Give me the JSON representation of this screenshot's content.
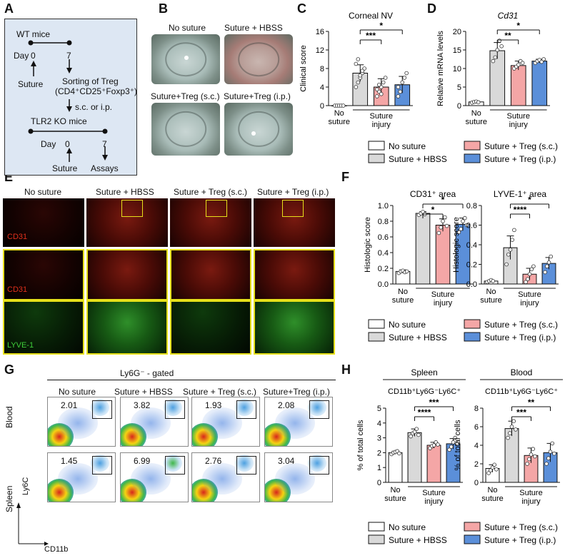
{
  "panels": {
    "A": "A",
    "B": "B",
    "C": "C",
    "D": "D",
    "E": "E",
    "F": "F",
    "G": "G",
    "H": "H"
  },
  "panelA": {
    "wt_mice": "WT mice",
    "day_label": "Day",
    "day0": "0",
    "day7": "7",
    "suture": "Suture",
    "sorting_line1": "Sorting of Treg",
    "sorting_line2": "(CD4⁺CD25⁺Foxp3⁺)",
    "route": "s.c. or i.p.",
    "tlr2": "TLR2 KO mice",
    "day_label2": "Day",
    "day0b": "0",
    "day7b": "7",
    "suture2": "Suture",
    "assays": "Assays"
  },
  "panelB": {
    "labels": [
      "No suture",
      "Suture + HBSS",
      "Suture+Treg (s.c.)",
      "Suture+Treg (i.p.)"
    ]
  },
  "panelE": {
    "columns": [
      "No suture",
      "Suture + HBSS",
      "Suture + Treg (s.c.)",
      "Suture + Treg (i.p.)"
    ],
    "row_labels": [
      "CD31",
      "CD31",
      "LYVE-1"
    ]
  },
  "panelG": {
    "header": "Ly6G⁻ - gated",
    "columns": [
      "No suture",
      "Suture + HBSS",
      "Suture + Treg (s.c.)",
      "Suture+Treg (i.p.)"
    ],
    "rows": [
      "Blood",
      "Spleen"
    ],
    "blood_values": [
      "2.01",
      "3.82",
      "1.93",
      "2.08"
    ],
    "spleen_values": [
      "1.45",
      "6.99",
      "2.76",
      "3.04"
    ],
    "yaxis": "Ly6C",
    "xaxis": "CD11b"
  },
  "legend": {
    "no_suture": "No suture",
    "hbss": "Suture + HBSS",
    "treg_sc": "Suture + Treg (s.c.)",
    "treg_ip": "Suture + Treg (i.p.)"
  },
  "group_labels": {
    "no1": "No",
    "no2": "suture",
    "inj1": "Suture",
    "inj2": "injury"
  },
  "colors": {
    "no": "#ffffff",
    "hbss": "#d9d9d9",
    "sc": "#f4a6a6",
    "ip": "#5b8fd9"
  },
  "chart_data": [
    {
      "id": "C",
      "type": "bar",
      "title": "Corneal NV",
      "title_italic": false,
      "ylabel": "Clinical score",
      "ylim": [
        0,
        16
      ],
      "yticks": [
        "0",
        "4",
        "8",
        "12",
        "16"
      ],
      "categories": [
        "No suture",
        "Suture + HBSS",
        "Suture + Treg (s.c.)",
        "Suture + Treg (i.p.)"
      ],
      "values": [
        0,
        7,
        4,
        4.5
      ],
      "errors": [
        0,
        1.8,
        1.8,
        1.8
      ],
      "points": [
        [
          0,
          0,
          0,
          0,
          0
        ],
        [
          4,
          5,
          6,
          7,
          8,
          9,
          10,
          6.5,
          7.5
        ],
        [
          2,
          3,
          4,
          5,
          6,
          3.5,
          4.5,
          2.5
        ],
        [
          2,
          3,
          5,
          6,
          7,
          4,
          3
        ]
      ],
      "sig": [
        {
          "label": "***",
          "from": 1,
          "to": 2
        },
        {
          "label": "*",
          "from": 1,
          "to": 3
        }
      ]
    },
    {
      "id": "D",
      "type": "bar",
      "title": "Cd31",
      "title_italic": true,
      "ylabel": "Relative mRNA levels",
      "ylim": [
        0,
        20
      ],
      "yticks": [
        "0",
        "5",
        "10",
        "15",
        "20"
      ],
      "categories": [
        "No suture",
        "Suture + HBSS",
        "Suture + Treg (s.c.)",
        "Suture + Treg (i.p.)"
      ],
      "values": [
        1,
        14.8,
        10.8,
        12
      ],
      "errors": [
        0.2,
        2.2,
        1.2,
        0.5
      ],
      "points": [
        [
          0.8,
          1,
          1.1,
          0.9
        ],
        [
          12,
          13,
          15,
          17.5,
          16
        ],
        [
          10,
          10.5,
          11,
          12,
          11.5
        ],
        [
          11.5,
          12,
          12.3,
          11.8,
          12.5
        ]
      ],
      "sig": [
        {
          "label": "**",
          "from": 1,
          "to": 2
        },
        {
          "label": "*",
          "from": 1,
          "to": 3
        }
      ]
    },
    {
      "id": "F1",
      "type": "bar",
      "title": "CD31⁺ area",
      "title_italic": false,
      "ylabel": "Histologic score",
      "ylim": [
        0,
        1.0
      ],
      "yticks": [
        "0.0",
        "0.2",
        "0.4",
        "0.6",
        "0.8",
        "1.0"
      ],
      "categories": [
        "No suture",
        "Suture + HBSS",
        "Suture + Treg (s.c.)",
        "Suture + Treg (i.p.)"
      ],
      "values": [
        0.16,
        0.9,
        0.75,
        0.76
      ],
      "errors": [
        0.02,
        0.02,
        0.08,
        0.08
      ],
      "points": [
        [
          0.14,
          0.16,
          0.17,
          0.15,
          0.16
        ],
        [
          0.88,
          0.9,
          0.92,
          0.89
        ],
        [
          0.65,
          0.72,
          0.8,
          0.85,
          0.74
        ],
        [
          0.66,
          0.7,
          0.8,
          0.84,
          0.75
        ]
      ],
      "sig": [
        {
          "label": "*",
          "from": 1,
          "to": 2
        },
        {
          "label": "*",
          "from": 1,
          "to": 3
        }
      ]
    },
    {
      "id": "F2",
      "type": "bar",
      "title": "LYVE-1⁺ area",
      "title_italic": false,
      "ylabel": "Histologic score",
      "ylim": [
        0,
        0.8
      ],
      "yticks": [
        "0.0",
        "0.2",
        "0.4",
        "0.6",
        "0.8"
      ],
      "categories": [
        "No suture",
        "Suture + HBSS",
        "Suture + Treg (s.c.)",
        "Suture + Treg (i.p.)"
      ],
      "values": [
        0.03,
        0.37,
        0.1,
        0.21
      ],
      "errors": [
        0.01,
        0.12,
        0.06,
        0.06
      ],
      "points": [
        [
          0.02,
          0.03,
          0.04,
          0.03
        ],
        [
          0.2,
          0.3,
          0.35,
          0.45,
          0.55
        ],
        [
          0.02,
          0.05,
          0.1,
          0.15,
          0.18
        ],
        [
          0.12,
          0.18,
          0.22,
          0.28
        ]
      ],
      "sig": [
        {
          "label": "****",
          "from": 1,
          "to": 2
        },
        {
          "label": "*",
          "from": 1,
          "to": 3
        }
      ]
    },
    {
      "id": "H1",
      "type": "bar",
      "title": "Spleen",
      "subtitle": "CD11b⁺Ly6G⁻Ly6C⁺",
      "title_italic": false,
      "ylabel": "% of total cells",
      "ylim": [
        0,
        5
      ],
      "yticks": [
        "0",
        "1",
        "2",
        "3",
        "4",
        "5"
      ],
      "categories": [
        "No suture",
        "Suture + HBSS",
        "Suture + Treg (s.c.)",
        "Suture + Treg (i.p.)"
      ],
      "values": [
        2,
        3.35,
        2.5,
        2.6
      ],
      "errors": [
        0.1,
        0.25,
        0.2,
        0.35
      ],
      "points": [
        [
          1.9,
          2,
          2.05,
          2.1,
          1.95
        ],
        [
          3.1,
          3.3,
          3.4,
          3.6,
          3.2
        ],
        [
          2.3,
          2.45,
          2.5,
          2.7,
          2.55
        ],
        [
          2.2,
          2.4,
          2.7,
          3,
          2.6
        ]
      ],
      "sig": [
        {
          "label": "****",
          "from": 1,
          "to": 2
        },
        {
          "label": "***",
          "from": 1,
          "to": 3
        }
      ]
    },
    {
      "id": "H2",
      "type": "bar",
      "title": "Blood",
      "subtitle": "CD11b⁺Ly6G⁻Ly6C⁺",
      "title_italic": false,
      "ylabel": "% of total cells",
      "ylim": [
        0,
        8
      ],
      "yticks": [
        "0",
        "2",
        "4",
        "6",
        "8"
      ],
      "categories": [
        "No suture",
        "Suture + HBSS",
        "Suture + Treg (s.c.)",
        "Suture + Treg (i.p.)"
      ],
      "values": [
        1.5,
        5.8,
        2.9,
        3.2
      ],
      "errors": [
        0.4,
        0.8,
        0.8,
        1
      ],
      "points": [
        [
          1,
          1.3,
          1.6,
          1.9,
          1.4
        ],
        [
          4.8,
          5.3,
          6,
          6.6,
          5.7
        ],
        [
          2,
          2.5,
          3,
          3.6,
          2.8
        ],
        [
          2,
          2.6,
          3.3,
          4.2,
          3.1
        ]
      ],
      "sig": [
        {
          "label": "***",
          "from": 1,
          "to": 2
        },
        {
          "label": "**",
          "from": 1,
          "to": 3
        }
      ]
    }
  ]
}
